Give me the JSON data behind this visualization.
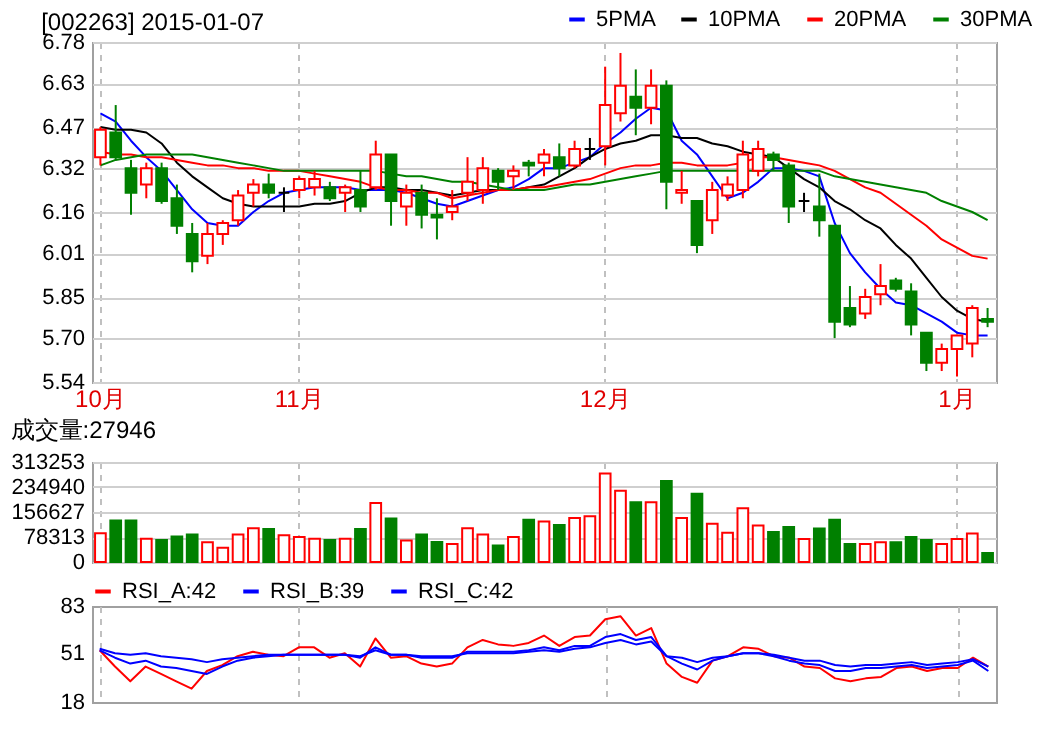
{
  "chart_data": [
    {
      "type": "candlestick",
      "title": "[002263] 2015-01-07",
      "categories": [
        "10月",
        null,
        null,
        null,
        null,
        null,
        null,
        null,
        null,
        null,
        null,
        null,
        null,
        "11月",
        null,
        null,
        null,
        null,
        null,
        null,
        null,
        null,
        null,
        null,
        null,
        null,
        null,
        null,
        null,
        null,
        null,
        null,
        null,
        "12月",
        null,
        null,
        null,
        null,
        null,
        null,
        null,
        null,
        null,
        null,
        null,
        null,
        null,
        null,
        null,
        null,
        null,
        null,
        null,
        null,
        null,
        null,
        "1月",
        null,
        null
      ],
      "ohlc": [
        [
          6.36,
          6.47,
          6.33,
          6.46
        ],
        [
          6.45,
          6.55,
          6.35,
          6.36
        ],
        [
          6.32,
          6.35,
          6.15,
          6.23
        ],
        [
          6.26,
          6.34,
          6.21,
          6.32
        ],
        [
          6.32,
          6.34,
          6.19,
          6.2
        ],
        [
          6.21,
          6.26,
          6.08,
          6.11
        ],
        [
          6.08,
          6.12,
          5.94,
          5.98
        ],
        [
          6.0,
          6.12,
          5.97,
          6.08
        ],
        [
          6.08,
          6.13,
          6.04,
          6.12
        ],
        [
          6.13,
          6.24,
          6.11,
          6.22
        ],
        [
          6.23,
          6.28,
          6.18,
          6.26
        ],
        [
          6.26,
          6.3,
          6.21,
          6.23
        ],
        [
          6.23,
          6.25,
          6.16,
          6.23
        ],
        [
          6.24,
          6.29,
          6.21,
          6.28
        ],
        [
          6.25,
          6.31,
          6.22,
          6.28
        ],
        [
          6.25,
          6.27,
          6.2,
          6.21
        ],
        [
          6.23,
          6.26,
          6.16,
          6.25
        ],
        [
          6.24,
          6.31,
          6.16,
          6.18
        ],
        [
          6.25,
          6.42,
          6.24,
          6.37
        ],
        [
          6.37,
          6.37,
          6.11,
          6.2
        ],
        [
          6.18,
          6.26,
          6.11,
          6.23
        ],
        [
          6.23,
          6.26,
          6.1,
          6.15
        ],
        [
          6.15,
          6.21,
          6.06,
          6.14
        ],
        [
          6.16,
          6.24,
          6.13,
          6.18
        ],
        [
          6.23,
          6.36,
          6.2,
          6.27
        ],
        [
          6.24,
          6.36,
          6.19,
          6.32
        ],
        [
          6.31,
          6.32,
          6.24,
          6.27
        ],
        [
          6.29,
          6.33,
          6.24,
          6.31
        ],
        [
          6.34,
          6.35,
          6.29,
          6.33
        ],
        [
          6.34,
          6.39,
          6.29,
          6.37
        ],
        [
          6.36,
          6.41,
          6.29,
          6.32
        ],
        [
          6.33,
          6.42,
          6.32,
          6.39
        ],
        [
          6.39,
          6.43,
          6.35,
          6.39
        ],
        [
          6.4,
          6.69,
          6.33,
          6.55
        ],
        [
          6.52,
          6.74,
          6.49,
          6.62
        ],
        [
          6.58,
          6.68,
          6.44,
          6.54
        ],
        [
          6.54,
          6.68,
          6.48,
          6.62
        ],
        [
          6.62,
          6.64,
          6.17,
          6.27
        ],
        [
          6.23,
          6.31,
          6.19,
          6.24
        ],
        [
          6.2,
          6.2,
          6.01,
          6.04
        ],
        [
          6.13,
          6.27,
          6.08,
          6.24
        ],
        [
          6.22,
          6.29,
          6.2,
          6.26
        ],
        [
          6.24,
          6.42,
          6.21,
          6.37
        ],
        [
          6.31,
          6.42,
          6.29,
          6.39
        ],
        [
          6.37,
          6.38,
          6.31,
          6.35
        ],
        [
          6.33,
          6.34,
          6.12,
          6.18
        ],
        [
          6.2,
          6.23,
          6.16,
          6.2
        ],
        [
          6.18,
          6.3,
          6.07,
          6.13
        ],
        [
          6.11,
          6.11,
          5.7,
          5.76
        ],
        [
          5.81,
          5.89,
          5.74,
          5.75
        ],
        [
          5.79,
          5.88,
          5.77,
          5.85
        ],
        [
          5.86,
          5.97,
          5.82,
          5.89
        ],
        [
          5.91,
          5.92,
          5.87,
          5.88
        ],
        [
          5.87,
          5.9,
          5.71,
          5.75
        ],
        [
          5.72,
          5.72,
          5.58,
          5.61
        ],
        [
          5.61,
          5.68,
          5.58,
          5.66
        ],
        [
          5.66,
          5.71,
          5.56,
          5.71
        ],
        [
          5.68,
          5.82,
          5.63,
          5.81
        ],
        [
          5.77,
          5.81,
          5.74,
          5.76
        ]
      ],
      "series": [
        {
          "name": "5PMA",
          "type": "line",
          "color": "#0000ff",
          "values": [
            6.52,
            6.49,
            6.42,
            6.36,
            6.31,
            6.24,
            6.17,
            6.12,
            6.11,
            6.11,
            6.16,
            6.2,
            6.23,
            6.24,
            6.25,
            6.25,
            6.25,
            6.24,
            6.24,
            6.24,
            6.23,
            6.21,
            6.19,
            6.18,
            6.2,
            6.22,
            6.24,
            6.25,
            6.28,
            6.32,
            6.32,
            6.34,
            6.36,
            6.41,
            6.45,
            6.5,
            6.54,
            6.53,
            6.42,
            6.37,
            6.29,
            6.21,
            6.23,
            6.27,
            6.32,
            6.32,
            6.31,
            6.29,
            6.12,
            6.01,
            5.94,
            5.88,
            5.83,
            5.82,
            5.79,
            5.76,
            5.72,
            5.71,
            5.71
          ]
        },
        {
          "name": "10PMA",
          "type": "line",
          "color": "#000000",
          "values": [
            6.47,
            6.46,
            6.46,
            6.45,
            6.41,
            6.34,
            6.29,
            6.25,
            6.21,
            6.19,
            6.18,
            6.18,
            6.18,
            6.18,
            6.19,
            6.19,
            6.2,
            6.23,
            6.25,
            6.25,
            6.24,
            6.24,
            6.23,
            6.22,
            6.23,
            6.24,
            6.24,
            6.24,
            6.25,
            6.26,
            6.29,
            6.32,
            6.36,
            6.39,
            6.41,
            6.42,
            6.44,
            6.44,
            6.43,
            6.43,
            6.41,
            6.4,
            6.38,
            6.37,
            6.36,
            6.32,
            6.28,
            6.25,
            6.2,
            6.17,
            6.13,
            6.1,
            6.04,
            5.99,
            5.92,
            5.85,
            5.8,
            5.77,
            5.76
          ]
        },
        {
          "name": "20PMA",
          "type": "line",
          "color": "#ff0000",
          "values": [
            6.38,
            6.37,
            6.37,
            6.36,
            6.36,
            6.35,
            6.34,
            6.33,
            6.33,
            6.32,
            6.32,
            6.31,
            6.31,
            6.31,
            6.3,
            6.29,
            6.28,
            6.27,
            6.25,
            6.24,
            6.24,
            6.23,
            6.23,
            6.21,
            6.22,
            6.23,
            6.24,
            6.24,
            6.25,
            6.25,
            6.26,
            6.27,
            6.28,
            6.3,
            6.32,
            6.33,
            6.33,
            6.34,
            6.34,
            6.33,
            6.33,
            6.33,
            6.34,
            6.36,
            6.36,
            6.35,
            6.34,
            6.33,
            6.31,
            6.28,
            6.25,
            6.23,
            6.19,
            6.15,
            6.11,
            6.06,
            6.03,
            6.0,
            5.99
          ]
        },
        {
          "name": "30PMA",
          "type": "line",
          "color": "#008000",
          "values": [
            6.33,
            6.35,
            6.36,
            6.37,
            6.37,
            6.37,
            6.37,
            6.36,
            6.35,
            6.34,
            6.33,
            6.32,
            6.31,
            6.31,
            6.31,
            6.31,
            6.31,
            6.31,
            6.31,
            6.3,
            6.29,
            6.29,
            6.28,
            6.27,
            6.27,
            6.26,
            6.25,
            6.24,
            6.24,
            6.24,
            6.25,
            6.26,
            6.26,
            6.27,
            6.28,
            6.29,
            6.3,
            6.31,
            6.31,
            6.31,
            6.31,
            6.31,
            6.31,
            6.31,
            6.31,
            6.31,
            6.31,
            6.31,
            6.29,
            6.28,
            6.27,
            6.26,
            6.25,
            6.24,
            6.23,
            6.2,
            6.18,
            6.16,
            6.13
          ]
        }
      ],
      "ylim": [
        5.54,
        6.78
      ],
      "yticks": [
        5.54,
        {
          "value": 5.7,
          "label": "5.70"
        },
        5.85,
        6.01,
        6.16,
        6.32,
        6.47,
        6.63,
        6.78
      ],
      "grid": true,
      "legend": "top right"
    },
    {
      "type": "bar",
      "title": "成交量:27946",
      "categories": [
        null,
        null,
        null,
        null,
        null,
        null,
        null,
        null,
        null,
        null,
        null,
        null,
        null,
        null,
        null,
        null,
        null,
        null,
        null,
        null,
        null,
        null,
        null,
        null,
        null,
        null,
        null,
        null,
        null,
        null,
        null,
        null,
        null,
        null,
        null,
        null,
        null,
        null,
        null,
        null,
        null,
        null,
        null,
        null,
        null,
        null,
        null,
        null,
        null,
        null,
        null,
        null,
        null,
        null,
        null,
        null,
        null,
        null,
        null
      ],
      "values": [
        90000,
        130000,
        130000,
        73000,
        69000,
        80000,
        86000,
        62000,
        45000,
        86000,
        106000,
        103000,
        84000,
        78000,
        73000,
        69000,
        73000,
        103000,
        185000,
        136000,
        67000,
        86000,
        63000,
        56000,
        106000,
        86000,
        52000,
        78000,
        132000,
        127000,
        116000,
        138000,
        143000,
        277000,
        223000,
        187000,
        187000,
        254000,
        138000,
        214000,
        120000,
        92000,
        168000,
        114000,
        94000,
        110000,
        72000,
        105000,
        132000,
        56000,
        56000,
        62000,
        62000,
        78000,
        69000,
        56000,
        72000,
        89000,
        27946
      ],
      "colors": [
        "#ff0000",
        "#008000",
        "#008000",
        "#ff0000",
        "#008000",
        "#008000",
        "#008000",
        "#ff0000",
        "#ff0000",
        "#ff0000",
        "#ff0000",
        "#008000",
        "#ff0000",
        "#ff0000",
        "#ff0000",
        "#008000",
        "#ff0000",
        "#008000",
        "#ff0000",
        "#008000",
        "#ff0000",
        "#008000",
        "#008000",
        "#ff0000",
        "#ff0000",
        "#ff0000",
        "#008000",
        "#ff0000",
        "#008000",
        "#ff0000",
        "#008000",
        "#ff0000",
        "#ff0000",
        "#ff0000",
        "#ff0000",
        "#008000",
        "#ff0000",
        "#008000",
        "#ff0000",
        "#008000",
        "#ff0000",
        "#ff0000",
        "#ff0000",
        "#ff0000",
        "#008000",
        "#008000",
        "#ff0000",
        "#008000",
        "#008000",
        "#008000",
        "#ff0000",
        "#ff0000",
        "#008000",
        "#008000",
        "#008000",
        "#ff0000",
        "#ff0000",
        "#ff0000",
        "#008000"
      ],
      "ylim": [
        0,
        313253
      ],
      "yticks": [
        0,
        78313,
        156627,
        234940,
        313253
      ],
      "grid": true,
      "tick_labels": "y"
    },
    {
      "type": "line",
      "categories": [
        null,
        null,
        null,
        null,
        null,
        null,
        null,
        null,
        null,
        null,
        null,
        null,
        null,
        null,
        null,
        null,
        null,
        null,
        null,
        null,
        null,
        null,
        null,
        null,
        null,
        null,
        null,
        null,
        null,
        null,
        null,
        null,
        null,
        null,
        null,
        null,
        null,
        null,
        null,
        null,
        null,
        null,
        null,
        null,
        null,
        null,
        null,
        null,
        null,
        null,
        null,
        null,
        null,
        null,
        null,
        null,
        null,
        null,
        null
      ],
      "series": [
        {
          "name": "RSI_A:42",
          "color": "#ff0000",
          "values": [
            53,
            42,
            32,
            42,
            37,
            32,
            27,
            39,
            43,
            49,
            52,
            50,
            49,
            55,
            55,
            48,
            51,
            42,
            61,
            48,
            49,
            44,
            42,
            44,
            55,
            60,
            57,
            56,
            58,
            63,
            56,
            62,
            63,
            74,
            76,
            63,
            68,
            44,
            35,
            31,
            46,
            49,
            55,
            54,
            49,
            48,
            42,
            41,
            34,
            32,
            34,
            35,
            41,
            42,
            39,
            41,
            41,
            48,
            42
          ]
        },
        {
          "name": "RSI_B:39",
          "color": "#0000ff",
          "values": [
            53,
            48,
            44,
            46,
            42,
            41,
            39,
            37,
            42,
            46,
            48,
            49,
            50,
            50,
            50,
            50,
            50,
            48,
            55,
            50,
            50,
            48,
            48,
            48,
            52,
            52,
            52,
            52,
            53,
            55,
            53,
            56,
            56,
            62,
            64,
            60,
            62,
            49,
            44,
            40,
            46,
            49,
            51,
            51,
            49,
            46,
            44,
            43,
            39,
            39,
            41,
            41,
            42,
            43,
            41,
            42,
            43,
            46,
            39
          ]
        },
        {
          "name": "RSI_C:42",
          "color": "#0000ff",
          "values": [
            54,
            51,
            50,
            51,
            49,
            48,
            47,
            45,
            47,
            48,
            49,
            50,
            50,
            50,
            50,
            50,
            50,
            49,
            53,
            50,
            50,
            49,
            49,
            49,
            51,
            51,
            51,
            51,
            52,
            53,
            52,
            54,
            55,
            58,
            60,
            57,
            59,
            49,
            48,
            45,
            48,
            49,
            51,
            51,
            50,
            48,
            46,
            46,
            43,
            42,
            43,
            43,
            44,
            45,
            43,
            44,
            45,
            47,
            42
          ]
        }
      ],
      "ylim": [
        18,
        83
      ],
      "yticks": [
        18,
        51,
        83
      ],
      "grid": "x",
      "tick_labels": "y",
      "legend": "top left"
    }
  ]
}
